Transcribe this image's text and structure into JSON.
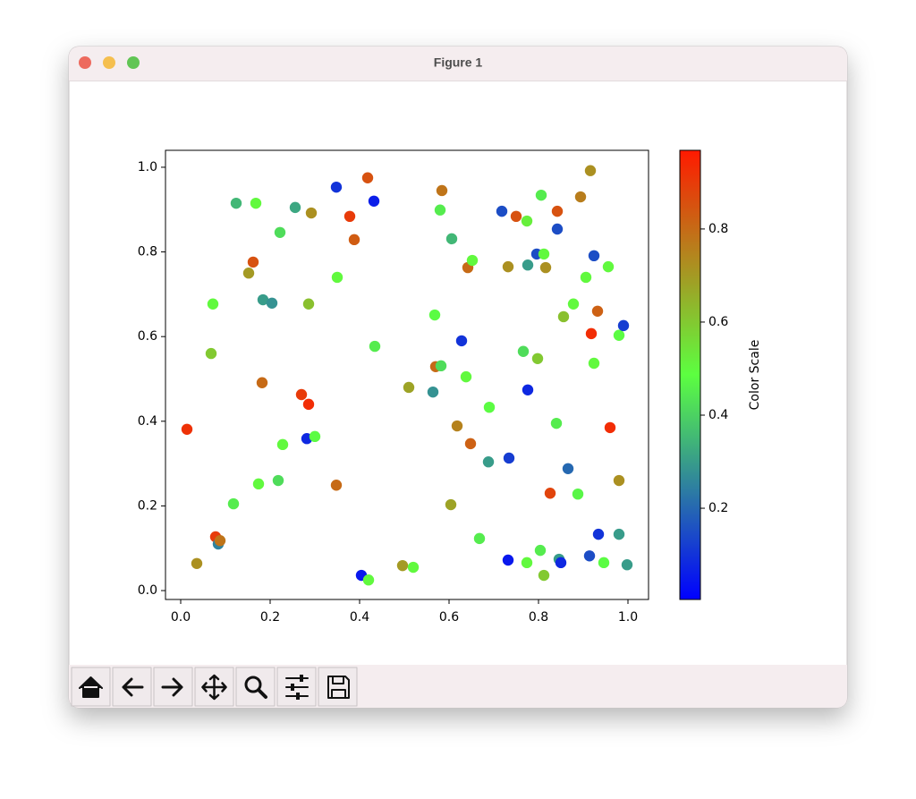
{
  "window": {
    "title": "Figure 1"
  },
  "chart_data": {
    "type": "scatter",
    "x": [
      0.014,
      0.036,
      0.068,
      0.072,
      0.078,
      0.084,
      0.088,
      0.118,
      0.124,
      0.152,
      0.162,
      0.168,
      0.174,
      0.182,
      0.184,
      0.204,
      0.218,
      0.222,
      0.228,
      0.256,
      0.27,
      0.282,
      0.286,
      0.286,
      0.292,
      0.3,
      0.348,
      0.35,
      0.348,
      0.378,
      0.388,
      0.404,
      0.418,
      0.42,
      0.432,
      0.434,
      0.496,
      0.51,
      0.52,
      0.564,
      0.568,
      0.57,
      0.582,
      0.58,
      0.584,
      0.604,
      0.606,
      0.618,
      0.628,
      0.638,
      0.642,
      0.648,
      0.652,
      0.668,
      0.688,
      0.69,
      0.718,
      0.732,
      0.732,
      0.734,
      0.75,
      0.766,
      0.774,
      0.774,
      0.776,
      0.776,
      0.796,
      0.798,
      0.804,
      0.806,
      0.812,
      0.812,
      0.816,
      0.826,
      0.84,
      0.842,
      0.842,
      0.846,
      0.85,
      0.856,
      0.866,
      0.878,
      0.888,
      0.894,
      0.906,
      0.914,
      0.916,
      0.918,
      0.924,
      0.924,
      0.932,
      0.934,
      0.946,
      0.956,
      0.96,
      0.98,
      0.98,
      0.98,
      0.99,
      0.998
    ],
    "y": [
      0.381,
      0.064,
      0.56,
      0.677,
      0.127,
      0.11,
      0.118,
      0.205,
      0.915,
      0.75,
      0.776,
      0.915,
      0.252,
      0.491,
      0.687,
      0.679,
      0.26,
      0.846,
      0.345,
      0.905,
      0.463,
      0.359,
      0.44,
      0.677,
      0.892,
      0.364,
      0.953,
      0.74,
      0.249,
      0.884,
      0.829,
      0.036,
      0.975,
      0.025,
      0.92,
      0.577,
      0.059,
      0.48,
      0.055,
      0.469,
      0.651,
      0.529,
      0.531,
      0.899,
      0.945,
      0.203,
      0.831,
      0.389,
      0.59,
      0.505,
      0.763,
      0.347,
      0.78,
      0.123,
      0.304,
      0.433,
      0.896,
      0.765,
      0.072,
      0.313,
      0.884,
      0.565,
      0.066,
      0.873,
      0.769,
      0.474,
      0.795,
      0.548,
      0.095,
      0.934,
      0.795,
      0.036,
      0.763,
      0.23,
      0.395,
      0.896,
      0.854,
      0.074,
      0.066,
      0.647,
      0.288,
      0.677,
      0.228,
      0.93,
      0.74,
      0.082,
      0.992,
      0.607,
      0.791,
      0.537,
      0.66,
      0.133,
      0.066,
      0.765,
      0.385,
      0.603,
      0.133,
      0.26,
      0.626,
      0.061
    ],
    "c": [
      0.92,
      0.72,
      0.6,
      0.5,
      0.9,
      0.25,
      0.78,
      0.45,
      0.35,
      0.7,
      0.85,
      0.5,
      0.5,
      0.8,
      0.3,
      0.28,
      0.42,
      0.42,
      0.5,
      0.32,
      0.9,
      0.08,
      0.93,
      0.62,
      0.72,
      0.48,
      0.1,
      0.5,
      0.8,
      0.9,
      0.83,
      0.05,
      0.85,
      0.5,
      0.06,
      0.45,
      0.7,
      0.68,
      0.5,
      0.28,
      0.48,
      0.8,
      0.42,
      0.45,
      0.78,
      0.68,
      0.35,
      0.75,
      0.1,
      0.5,
      0.8,
      0.82,
      0.5,
      0.45,
      0.3,
      0.48,
      0.15,
      0.72,
      0.05,
      0.12,
      0.85,
      0.42,
      0.5,
      0.52,
      0.3,
      0.08,
      0.15,
      0.6,
      0.45,
      0.45,
      0.5,
      0.6,
      0.72,
      0.88,
      0.45,
      0.85,
      0.15,
      0.3,
      0.08,
      0.62,
      0.2,
      0.5,
      0.47,
      0.76,
      0.5,
      0.15,
      0.72,
      0.93,
      0.15,
      0.5,
      0.82,
      0.1,
      0.48,
      0.5,
      0.93,
      0.48,
      0.3,
      0.72,
      0.12,
      0.3
    ],
    "colormap": [
      "#0000ff",
      "#5cff40",
      "#ff1a00"
    ],
    "xlim": [
      -0.034,
      1.046
    ],
    "ylim": [
      -0.021,
      1.04
    ],
    "xticks": [
      {
        "value": 0,
        "label": "0.0"
      },
      0.2,
      0.4,
      0.6,
      0.8,
      {
        "value": 1,
        "label": "1.0"
      }
    ],
    "yticks": [
      {
        "value": 0,
        "label": "0.0"
      },
      0.2,
      0.4,
      0.6,
      0.8,
      {
        "value": 1,
        "label": "1.0"
      }
    ],
    "grid": false,
    "colorbar": {
      "label": "Color Scale",
      "clim": [
        0.004,
        0.969
      ],
      "ticks": [
        0.2,
        0.4,
        0.6,
        0.8
      ]
    }
  }
}
